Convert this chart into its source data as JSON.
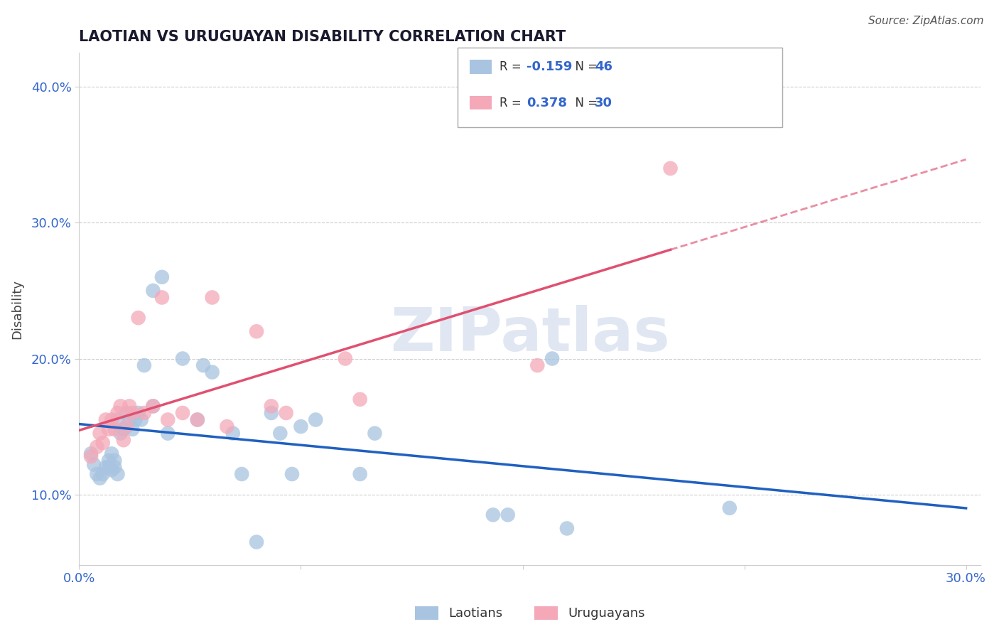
{
  "title": "LAOTIAN VS URUGUAYAN DISABILITY CORRELATION CHART",
  "source": "Source: ZipAtlas.com",
  "ylabel_label": "Disability",
  "xlim": [
    0.0,
    0.305
  ],
  "ylim": [
    0.048,
    0.425
  ],
  "laotian_R": "-0.159",
  "laotian_N": "46",
  "uruguayan_R": "0.378",
  "uruguayan_N": "30",
  "laotian_color": "#a8c4e0",
  "uruguayan_color": "#f4a8b8",
  "line_laotian_color": "#2060c0",
  "line_uruguayan_color": "#e05070",
  "watermark": "ZIPatlas",
  "laotian_x": [
    0.004,
    0.005,
    0.006,
    0.007,
    0.008,
    0.009,
    0.01,
    0.01,
    0.011,
    0.011,
    0.012,
    0.012,
    0.013,
    0.013,
    0.014,
    0.015,
    0.016,
    0.017,
    0.018,
    0.019,
    0.02,
    0.021,
    0.022,
    0.025,
    0.025,
    0.028,
    0.03,
    0.035,
    0.04,
    0.042,
    0.045,
    0.052,
    0.055,
    0.06,
    0.065,
    0.068,
    0.072,
    0.075,
    0.08,
    0.095,
    0.1,
    0.14,
    0.145,
    0.16,
    0.165,
    0.22
  ],
  "laotian_y": [
    0.13,
    0.122,
    0.115,
    0.112,
    0.115,
    0.12,
    0.125,
    0.12,
    0.118,
    0.13,
    0.125,
    0.12,
    0.115,
    0.155,
    0.145,
    0.148,
    0.16,
    0.155,
    0.148,
    0.155,
    0.16,
    0.155,
    0.195,
    0.165,
    0.25,
    0.26,
    0.145,
    0.2,
    0.155,
    0.195,
    0.19,
    0.145,
    0.115,
    0.065,
    0.16,
    0.145,
    0.115,
    0.15,
    0.155,
    0.115,
    0.145,
    0.085,
    0.085,
    0.2,
    0.075,
    0.09
  ],
  "uruguayan_x": [
    0.004,
    0.006,
    0.007,
    0.008,
    0.009,
    0.01,
    0.011,
    0.012,
    0.013,
    0.014,
    0.015,
    0.016,
    0.017,
    0.018,
    0.02,
    0.022,
    0.025,
    0.028,
    0.03,
    0.035,
    0.04,
    0.045,
    0.05,
    0.06,
    0.065,
    0.07,
    0.09,
    0.095,
    0.155,
    0.2
  ],
  "uruguayan_y": [
    0.128,
    0.135,
    0.145,
    0.138,
    0.155,
    0.148,
    0.155,
    0.148,
    0.16,
    0.165,
    0.14,
    0.15,
    0.165,
    0.16,
    0.23,
    0.16,
    0.165,
    0.245,
    0.155,
    0.16,
    0.155,
    0.245,
    0.15,
    0.22,
    0.165,
    0.16,
    0.2,
    0.17,
    0.195,
    0.34
  ]
}
